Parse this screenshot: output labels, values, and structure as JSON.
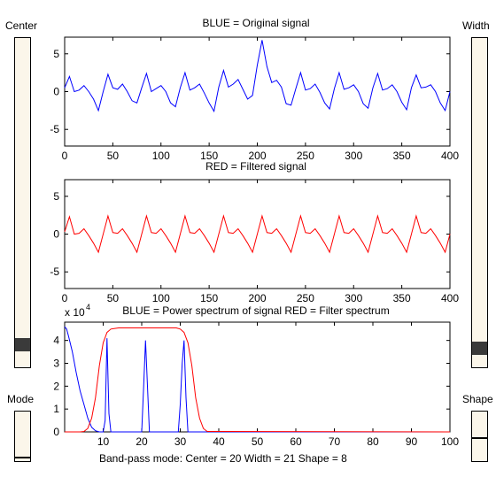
{
  "labels": {
    "center": "Center",
    "width": "Width",
    "mode": "Mode",
    "shape": "Shape"
  },
  "sliders": {
    "center": {
      "value_fraction": 0.05
    },
    "width": {
      "value_fraction": 0.04
    },
    "mode": {
      "value_fraction": 0.06
    },
    "shape": {
      "value_fraction": 0.47
    }
  },
  "status": {
    "text": "Band-pass mode:   Center = 20    Width = 21     Shape =  8"
  },
  "colors": {
    "original": "#0000ff",
    "filtered": "#ff0000",
    "power": "#0000ff",
    "filter_spectrum": "#ff0000"
  },
  "chart_data": [
    {
      "type": "line",
      "title": "BLUE = Original signal",
      "xlim": [
        0,
        400
      ],
      "ylim": [
        -7.2,
        7.2
      ],
      "x_ticks": [
        "0",
        "50",
        "100",
        "150",
        "200",
        "250",
        "300",
        "350",
        "400"
      ],
      "y_ticks": [
        "5",
        "0",
        "-5"
      ],
      "series": [
        {
          "color": "#0000ff",
          "x": [
            0,
            5,
            10,
            15,
            20,
            25,
            30,
            35,
            40,
            45,
            50,
            55,
            60,
            65,
            70,
            75,
            80,
            85,
            90,
            95,
            100,
            105,
            110,
            115,
            120,
            125,
            130,
            135,
            140,
            145,
            150,
            155,
            160,
            165,
            170,
            175,
            180,
            185,
            190,
            195,
            200,
            205,
            210,
            215,
            220,
            225,
            230,
            235,
            240,
            245,
            250,
            255,
            260,
            265,
            270,
            275,
            280,
            285,
            290,
            295,
            300,
            305,
            310,
            315,
            320,
            325,
            330,
            335,
            340,
            345,
            350,
            355,
            360,
            365,
            370,
            375,
            380,
            385,
            390,
            395,
            400
          ],
          "y": [
            0.5,
            2,
            0,
            0.2,
            0.8,
            0,
            -1,
            -2.5,
            0,
            2.3,
            0.5,
            0.3,
            1,
            0,
            -1.2,
            -1.5,
            0.5,
            2.4,
            0,
            0.4,
            0.8,
            0,
            -1.5,
            -2,
            0.5,
            2.5,
            0.2,
            0.5,
            1,
            -0.2,
            -1.5,
            -2.6,
            0.6,
            2.8,
            0.6,
            1,
            1.6,
            0.3,
            -1,
            -0.5,
            3.5,
            6.8,
            3.3,
            1.2,
            1.5,
            0.6,
            -1.6,
            -1.8,
            0.4,
            2.5,
            0.2,
            0.4,
            1,
            -0.1,
            -1.5,
            -2.3,
            0.4,
            2.5,
            0.3,
            0.5,
            0.9,
            0,
            -1.6,
            -2.2,
            0.5,
            2.4,
            0.2,
            0.4,
            0.9,
            0,
            -1.4,
            -2.4,
            0.5,
            2.2,
            0.5,
            0.6,
            0.9,
            0,
            -1.5,
            -2.5,
            0
          ]
        }
      ]
    },
    {
      "type": "line",
      "title": "RED = Filtered signal",
      "xlim": [
        0,
        400
      ],
      "ylim": [
        -7.2,
        7.2
      ],
      "x_ticks": [
        "0",
        "50",
        "100",
        "150",
        "200",
        "250",
        "300",
        "350",
        "400"
      ],
      "y_ticks": [
        "5",
        "0",
        "-5"
      ],
      "series": [
        {
          "color": "#ff0000",
          "x": [
            0,
            5,
            10,
            15,
            20,
            25,
            30,
            35,
            40,
            45,
            50,
            55,
            60,
            65,
            70,
            75,
            80,
            85,
            90,
            95,
            100,
            105,
            110,
            115,
            120,
            125,
            130,
            135,
            140,
            145,
            150,
            155,
            160,
            165,
            170,
            175,
            180,
            185,
            190,
            195,
            200,
            205,
            210,
            215,
            220,
            225,
            230,
            235,
            240,
            245,
            250,
            255,
            260,
            265,
            270,
            275,
            280,
            285,
            290,
            295,
            300,
            305,
            310,
            315,
            320,
            325,
            330,
            335,
            340,
            345,
            350,
            355,
            360,
            365,
            370,
            375,
            380,
            385,
            390,
            395,
            400
          ],
          "y": [
            0.3,
            2.3,
            0,
            0.1,
            0.7,
            -0.2,
            -1.2,
            -2.4,
            0,
            2.4,
            0.2,
            0.1,
            0.7,
            -0.2,
            -1.2,
            -2.4,
            0,
            2.4,
            0.2,
            0.1,
            0.7,
            -0.2,
            -1.2,
            -2.4,
            0,
            2.4,
            0.2,
            0.1,
            0.7,
            -0.2,
            -1.2,
            -2.4,
            0,
            2.4,
            0.2,
            0.1,
            0.7,
            -0.2,
            -1.2,
            -2.4,
            0,
            2.4,
            0.2,
            0.1,
            0.7,
            -0.2,
            -1.2,
            -2.4,
            0,
            2.4,
            0.2,
            0.1,
            0.7,
            -0.2,
            -1.2,
            -2.4,
            0,
            2.4,
            0.2,
            0.1,
            0.7,
            -0.2,
            -1.2,
            -2.4,
            0,
            2.4,
            0.2,
            0.1,
            0.7,
            -0.2,
            -1.2,
            -2.4,
            0,
            2.4,
            0.2,
            0.1,
            0.7,
            -0.2,
            -1.2,
            -2.4,
            0
          ]
        }
      ]
    },
    {
      "type": "line",
      "title": "BLUE = Power spectrum of signal      RED = Filter spectrum",
      "exponent_label": "x 10",
      "exponent_power": "4",
      "xlim": [
        0,
        100
      ],
      "ylim": [
        0,
        4.8
      ],
      "x_ticks": [
        "10",
        "20",
        "30",
        "40",
        "50",
        "60",
        "70",
        "80",
        "90",
        "100"
      ],
      "y_ticks": [
        "4",
        "3",
        "2",
        "1",
        "0"
      ],
      "series": [
        {
          "name": "Power spectrum",
          "color": "#0000ff",
          "x": [
            0,
            0.5,
            1,
            2,
            3,
            4,
            5,
            6,
            7,
            8,
            9,
            10,
            10.5,
            11,
            11.5,
            12,
            12.5,
            13,
            20,
            20.5,
            21,
            21.5,
            22,
            29.5,
            30,
            30.5,
            31,
            31.5,
            32,
            32.5,
            100
          ],
          "y": [
            4.6,
            4.5,
            4.2,
            3.5,
            2.6,
            1.8,
            1.2,
            0.6,
            0.2,
            0.05,
            0,
            0,
            0.5,
            4.1,
            0.8,
            0,
            0,
            0,
            0,
            2,
            4,
            2,
            0,
            0,
            1.2,
            3,
            4,
            1.5,
            0,
            0,
            0
          ]
        },
        {
          "name": "Filter spectrum",
          "color": "#ff0000",
          "x": [
            0,
            4,
            5,
            6,
            7,
            8,
            9,
            10,
            11,
            12,
            14,
            20,
            25,
            29,
            30,
            31,
            32,
            33,
            34,
            35,
            36,
            37,
            100
          ],
          "y": [
            0,
            0,
            0.02,
            0.15,
            0.6,
            1.5,
            2.9,
            3.9,
            4.35,
            4.5,
            4.55,
            4.55,
            4.55,
            4.55,
            4.5,
            4.35,
            3.9,
            2.9,
            1.5,
            0.6,
            0.15,
            0.02,
            0
          ]
        }
      ]
    }
  ]
}
